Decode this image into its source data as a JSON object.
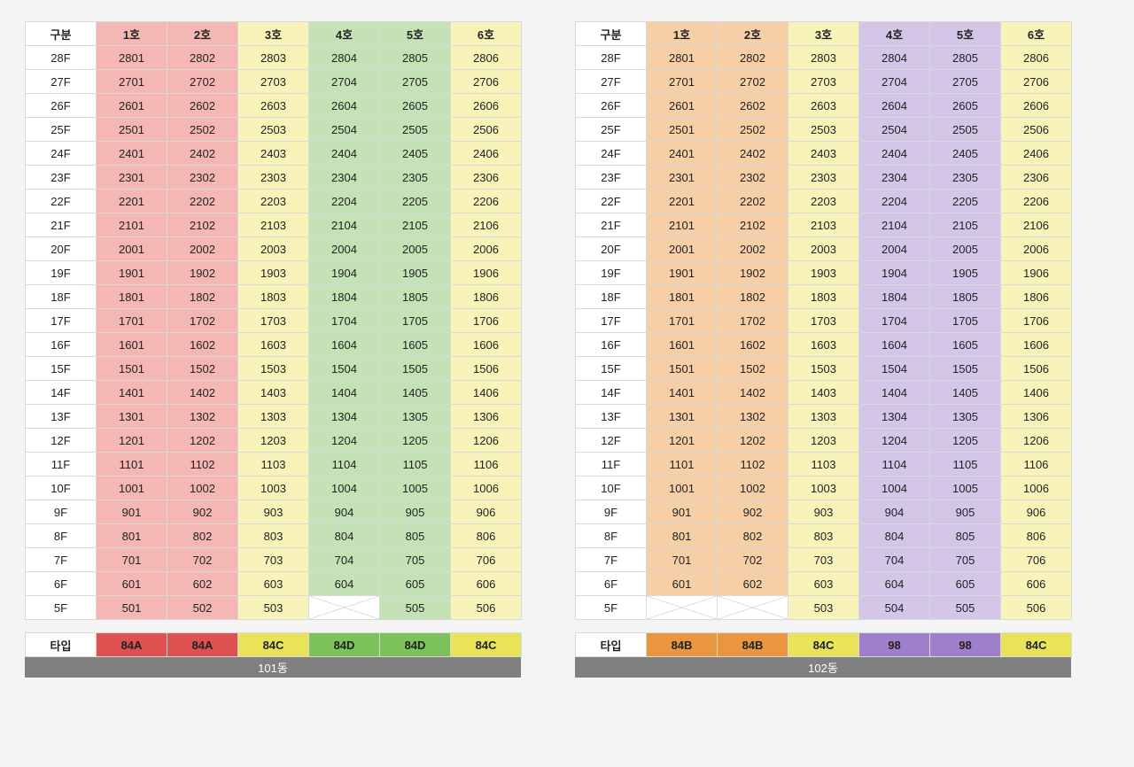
{
  "labels": {
    "category": "구분",
    "type": "타입"
  },
  "col_widths": {
    "first": 80,
    "unit": 80
  },
  "colors": {
    "border": "#d9d9d9",
    "background_page": "#f4f4f4",
    "building_name_bg": "#808080",
    "building_name_fg": "#ffffff",
    "text": "#222222",
    "cross": "#cfcfcf"
  },
  "unit_types": {
    "84A": {
      "light": "#f4b7b4",
      "strong": "#df5050"
    },
    "84B": {
      "light": "#f7cfa7",
      "strong": "#e9963f"
    },
    "84C": {
      "light": "#f7f3b9",
      "strong": "#e9e35a"
    },
    "84D": {
      "light": "#c5e2b6",
      "strong": "#7cc25a"
    },
    "98": {
      "light": "#d3c6e7",
      "strong": "#9f7fc9"
    }
  },
  "buildings": [
    {
      "name": "101동",
      "headers": [
        "1호",
        "2호",
        "3호",
        "4호",
        "5호",
        "6호"
      ],
      "column_types": [
        "84A",
        "84A",
        "84C",
        "84D",
        "84D",
        "84C"
      ],
      "floors": [
        28,
        27,
        26,
        25,
        24,
        23,
        22,
        21,
        20,
        19,
        18,
        17,
        16,
        15,
        14,
        13,
        12,
        11,
        10,
        9,
        8,
        7,
        6,
        5
      ],
      "empty_cells": [
        {
          "floor": 5,
          "col": 4
        }
      ]
    },
    {
      "name": "102동",
      "headers": [
        "1호",
        "2호",
        "3호",
        "4호",
        "5호",
        "6호"
      ],
      "column_types": [
        "84B",
        "84B",
        "84C",
        "98",
        "98",
        "84C"
      ],
      "floors": [
        28,
        27,
        26,
        25,
        24,
        23,
        22,
        21,
        20,
        19,
        18,
        17,
        16,
        15,
        14,
        13,
        12,
        11,
        10,
        9,
        8,
        7,
        6,
        5
      ],
      "empty_cells": [
        {
          "floor": 5,
          "col": 1
        },
        {
          "floor": 5,
          "col": 2
        }
      ]
    }
  ]
}
